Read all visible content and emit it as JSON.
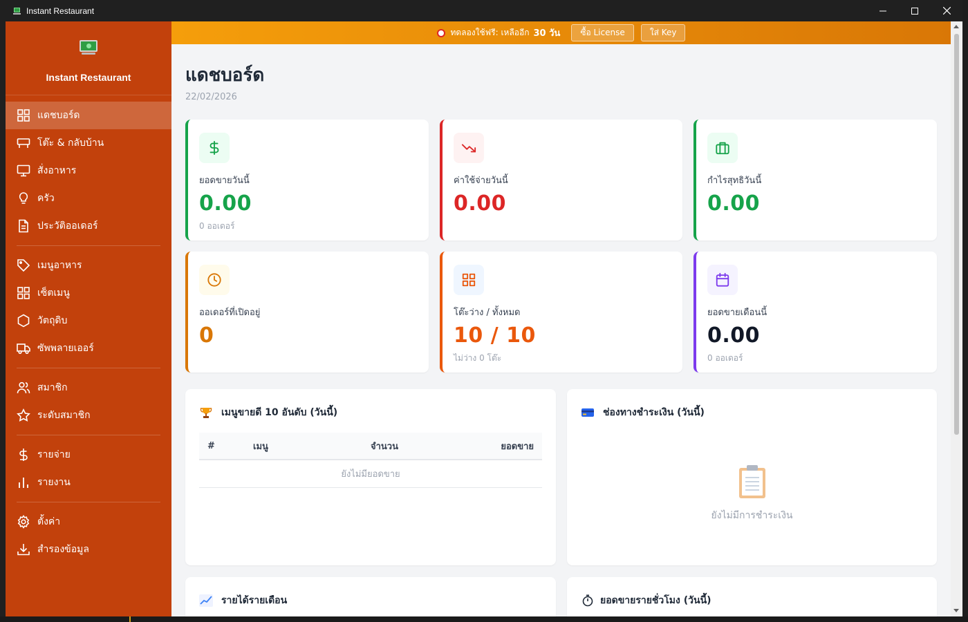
{
  "window": {
    "title": "Instant Restaurant"
  },
  "sidebar": {
    "brand": "Instant Restaurant",
    "groups": [
      [
        {
          "label": "แดชบอร์ด",
          "icon": "dashboard-icon",
          "active": true
        },
        {
          "label": "โต๊ะ & กลับบ้าน",
          "icon": "table-icon"
        },
        {
          "label": "สั่งอาหาร",
          "icon": "monitor-icon"
        },
        {
          "label": "ครัว",
          "icon": "lightbulb-icon"
        },
        {
          "label": "ประวัติออเดอร์",
          "icon": "document-icon"
        }
      ],
      [
        {
          "label": "เมนูอาหาร",
          "icon": "tag-icon"
        },
        {
          "label": "เซ็ตเมนู",
          "icon": "grid-icon"
        },
        {
          "label": "วัตถุดิบ",
          "icon": "hexagon-icon"
        },
        {
          "label": "ซัพพลายเออร์",
          "icon": "truck-icon"
        }
      ],
      [
        {
          "label": "สมาชิก",
          "icon": "users-icon"
        },
        {
          "label": "ระดับสมาชิก",
          "icon": "star-icon"
        }
      ],
      [
        {
          "label": "รายจ่าย",
          "icon": "dollar-icon"
        },
        {
          "label": "รายงาน",
          "icon": "bar-chart-icon"
        }
      ],
      [
        {
          "label": "ตั้งค่า",
          "icon": "gear-icon"
        },
        {
          "label": "สำรองข้อมูล",
          "icon": "download-icon"
        }
      ]
    ]
  },
  "trial": {
    "text": "ทดลองใช้ฟรี: เหลืออีก",
    "days": "30 วัน",
    "buy_label": "ซื้อ License",
    "key_label": "ใส่ Key"
  },
  "page": {
    "title": "แดชบอร์ด",
    "date": "22/02/2026"
  },
  "stats": [
    {
      "label": "ยอดขายวันนี้",
      "value": "0.00",
      "sub": "0 ออเดอร์",
      "icon": "dollar-icon",
      "accent": "#16a34a",
      "icon_bg": "#ecfdf3",
      "value_color": "#16a34a"
    },
    {
      "label": "ค่าใช้จ่ายวันนี้",
      "value": "0.00",
      "sub": "",
      "icon": "trending-down-icon",
      "accent": "#dc2626",
      "icon_bg": "#fef2f2",
      "value_color": "#dc2626"
    },
    {
      "label": "กำไรสุทธิวันนี้",
      "value": "0.00",
      "sub": "",
      "icon": "briefcase-icon",
      "accent": "#16a34a",
      "icon_bg": "#ecfdf3",
      "value_color": "#16a34a"
    },
    {
      "label": "ออเดอร์ที่เปิดอยู่",
      "value": "0",
      "sub": "",
      "icon": "clock-icon",
      "accent": "#d97706",
      "icon_bg": "#fffbeb",
      "value_color": "#d97706"
    },
    {
      "label": "โต๊ะว่าง / ทั้งหมด",
      "value": "10 / 10",
      "sub": "ไม่ว่าง 0 โต๊ะ",
      "icon": "grid-icon",
      "accent": "#ea580c",
      "icon_bg": "#eff6ff",
      "value_color": "#ea580c"
    },
    {
      "label": "ยอดขายเดือนนี้",
      "value": "0.00",
      "sub": "0 ออเดอร์",
      "icon": "calendar-icon",
      "accent": "#7c3aed",
      "icon_bg": "#f5f3ff",
      "value_color": "#111827"
    }
  ],
  "panels": {
    "top_menu": {
      "title": "เมนูขายดี 10 อันดับ (วันนี้)",
      "icon": "trophy-icon",
      "columns": [
        "#",
        "เมนู",
        "จำนวน",
        "ยอดขาย"
      ],
      "empty": "ยังไม่มียอดขาย"
    },
    "payment": {
      "title": "ช่องทางชำระเงิน (วันนี้)",
      "icon": "credit-card-icon",
      "empty": "ยังไม่มีการชำระเงิน",
      "empty_icon": "clipboard-icon"
    },
    "monthly": {
      "title": "รายได้รายเดือน",
      "icon": "line-chart-icon"
    },
    "hourly": {
      "title": "ยอดขายรายชั่วโมง (วันนี้)",
      "icon": "stopwatch-icon"
    }
  }
}
